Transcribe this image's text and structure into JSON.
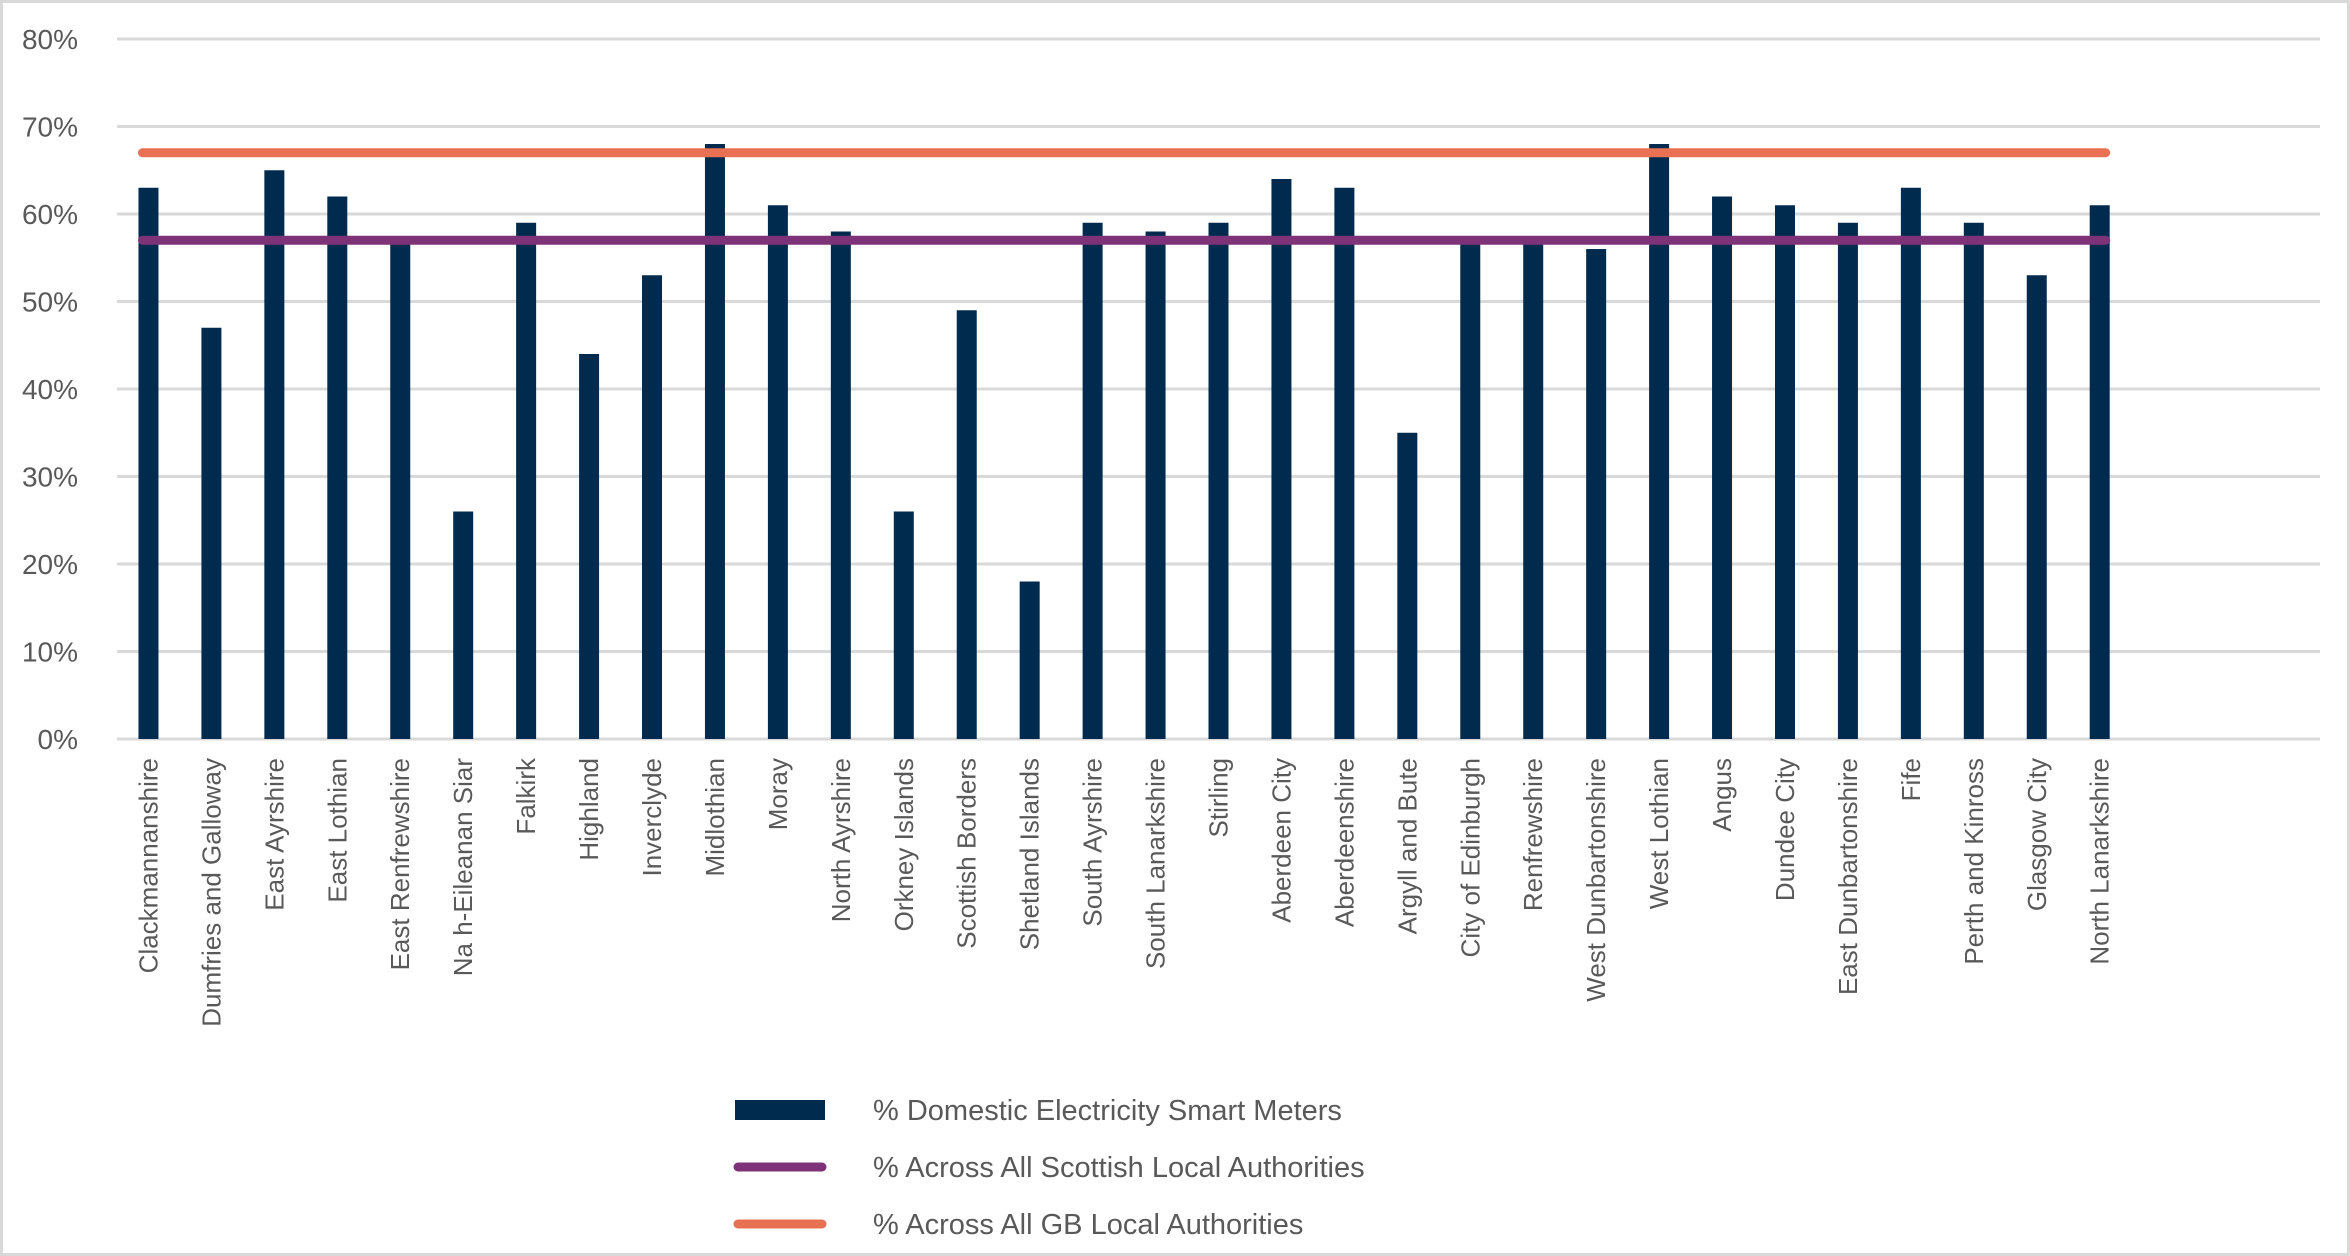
{
  "chart_data": {
    "type": "bar",
    "title": "",
    "xlabel": "",
    "ylabel": "",
    "ylim": [
      0,
      80
    ],
    "yticks": [
      "0%",
      "10%",
      "20%",
      "30%",
      "40%",
      "50%",
      "60%",
      "70%",
      "80%"
    ],
    "grid": true,
    "legend_placement": "bottom",
    "categories": [
      "Clackmannanshire",
      "Dumfries and Galloway",
      "East Ayrshire",
      "East Lothian",
      "East Renfrewshire",
      "Na h-Eileanan Siar",
      "Falkirk",
      "Highland",
      "Inverclyde",
      "Midlothian",
      "Moray",
      "North Ayrshire",
      "Orkney Islands",
      "Scottish Borders",
      "Shetland Islands",
      "South Ayrshire",
      "South Lanarkshire",
      "Stirling",
      "Aberdeen City",
      "Aberdeenshire",
      "Argyll and Bute",
      "City of Edinburgh",
      "Renfrewshire",
      "West Dunbartonshire",
      "West Lothian",
      "Angus",
      "Dundee City",
      "East Dunbartonshire",
      "Fife",
      "Perth and Kinross",
      "Glasgow City",
      "North Lanarkshire"
    ],
    "series": [
      {
        "name": "% Domestic Electricity Smart Meters",
        "type": "bar",
        "color": "#002b4f",
        "values": [
          63,
          47,
          65,
          62,
          57,
          26,
          59,
          44,
          53,
          68,
          61,
          58,
          26,
          49,
          18,
          59,
          58,
          59,
          64,
          63,
          35,
          57,
          57,
          56,
          68,
          62,
          61,
          59,
          63,
          59,
          53,
          61
        ]
      },
      {
        "name": "% Across All Scottish Local Authorities",
        "type": "line",
        "color": "#7e3277",
        "value": 57
      },
      {
        "name": "% Across All GB Local Authorities",
        "type": "line",
        "color": "#e87053",
        "value": 67
      }
    ],
    "gridline_color": "#d9d9d9"
  }
}
